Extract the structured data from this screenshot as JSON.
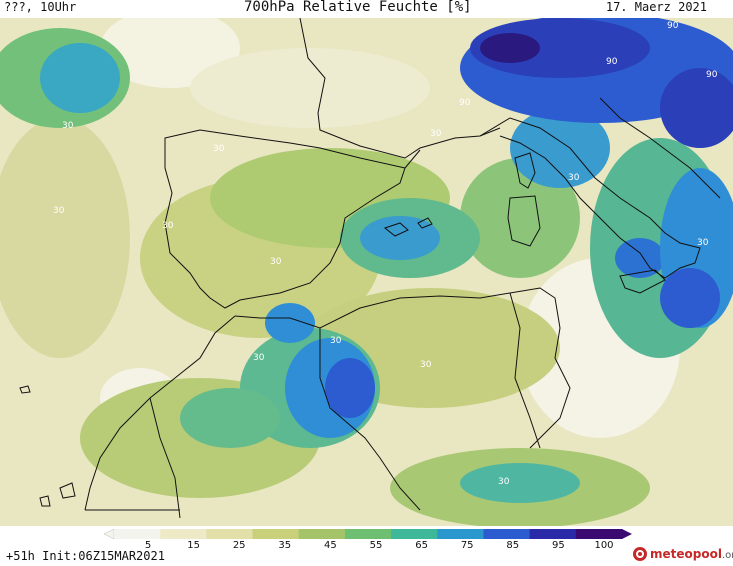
{
  "header": {
    "left": "???, 10Uhr",
    "title": "700hPa Relative Feuchte [%]",
    "date": "17. Maerz 2021"
  },
  "footer": {
    "init": "+51h Init:06Z15MAR2021",
    "logo_main": "meteopool",
    "logo_suffix": ".org"
  },
  "colorbar": {
    "labels": [
      "5",
      "15",
      "25",
      "35",
      "45",
      "55",
      "65",
      "75",
      "85",
      "95",
      "100"
    ],
    "colors": [
      "#f4f4ee",
      "#eeeac8",
      "#e2dfa8",
      "#c8d07a",
      "#a5c46a",
      "#6fbf72",
      "#3fb89a",
      "#2a98cc",
      "#2c5bd0",
      "#2a2aa8",
      "#3a0a70"
    ]
  },
  "contour_labels": [
    "30",
    "30",
    "30",
    "30",
    "30",
    "30",
    "30",
    "30",
    "30",
    "30",
    "30",
    "30",
    "90",
    "90",
    "90",
    "90"
  ],
  "map_colors": {
    "sea_dry": "#eceacd",
    "green": "#a8c86a",
    "blue": "#2f8fd4",
    "deep_blue": "#2a3fb8",
    "violet": "#2a1a80"
  }
}
